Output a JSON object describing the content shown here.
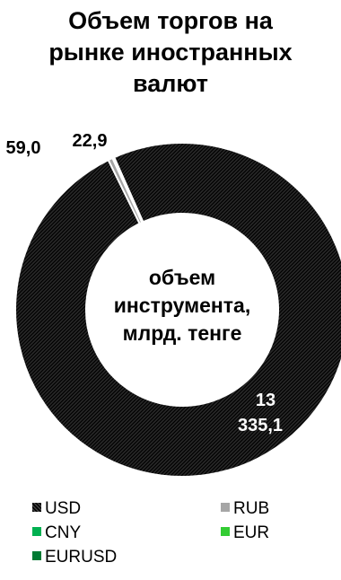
{
  "chart_data": {
    "type": "pie",
    "title_lines": [
      "Объем торгов на",
      "рынке иностранных",
      "валют"
    ],
    "center_label_lines": [
      "объем",
      "инструмента,",
      "млрд. тенге"
    ],
    "series": [
      {
        "name": "USD",
        "value": 13335.1,
        "label_lines": [
          "13",
          "335,1"
        ],
        "color": "#1a1a1a",
        "pattern": "diagonal"
      },
      {
        "name": "RUB",
        "value": 59.0,
        "label_lines": [
          "59,0"
        ],
        "color": "#a6a6a6",
        "pattern": "solid"
      },
      {
        "name": "CNY",
        "value": 22.9,
        "label_lines": [
          "22,9"
        ],
        "color": "#00b050",
        "pattern": "solid"
      },
      {
        "name": "EUR",
        "value": 0,
        "label_lines": [],
        "color": "#33cc33",
        "pattern": "solid"
      },
      {
        "name": "EURUSD",
        "value": 0,
        "label_lines": [],
        "color": "#007a33",
        "pattern": "solid"
      }
    ],
    "legend_position": "bottom",
    "donut": true
  }
}
